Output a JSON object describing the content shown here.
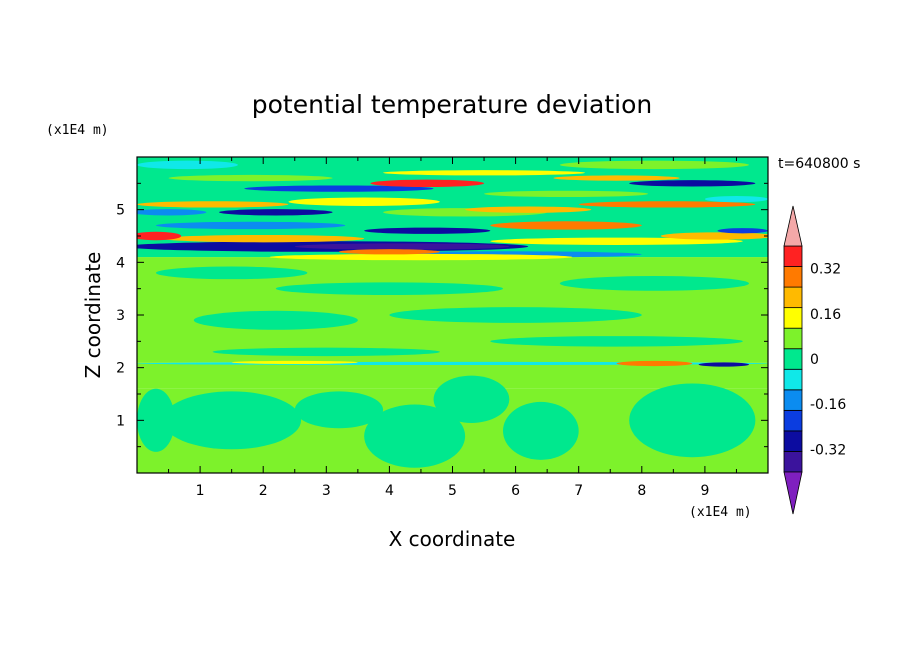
{
  "chart_data": {
    "type": "heatmap",
    "title": "potential temperature deviation",
    "xlabel": "X coordinate",
    "ylabel": "Z coordinate",
    "x_unit": "(x1E4 m)",
    "y_unit": "(x1E4 m)",
    "time_label": "t=640800 s",
    "xlim": [
      0,
      10
    ],
    "ylim": [
      0,
      6
    ],
    "x_ticks": [
      "1",
      "2",
      "3",
      "4",
      "5",
      "6",
      "7",
      "8",
      "9"
    ],
    "y_ticks": [
      "1",
      "2",
      "3",
      "4",
      "5"
    ],
    "colorbar": {
      "levels": [
        -0.48,
        -0.4,
        -0.32,
        -0.24,
        -0.16,
        -0.08,
        0,
        0.08,
        0.16,
        0.24,
        0.32,
        0.4,
        0.48
      ],
      "colors": [
        "#7f1fbf",
        "#3b139c",
        "#0c0ca0",
        "#0b3de0",
        "#0b8cf0",
        "#10e8e8",
        "#00e88e",
        "#7df22b",
        "#ffff00",
        "#ffba00",
        "#ff7a00",
        "#ff2222",
        "#f4a8a8"
      ],
      "labels": [
        "0.32",
        "0.16",
        "0",
        "-0.16",
        "-0.32"
      ],
      "label_values": [
        0.32,
        0.16,
        0,
        -0.16,
        -0.32
      ]
    },
    "bands": [
      {
        "z0": 0.0,
        "z1": 1.6,
        "x0": 0.0,
        "x1": 10.0,
        "v": 0.04
      },
      {
        "z0": 1.6,
        "z1": 2.1,
        "x0": 0.0,
        "x1": 10.0,
        "v": 0.04
      },
      {
        "z0": 2.1,
        "z1": 4.1,
        "x0": 0.0,
        "x1": 10.0,
        "v": 0.04
      },
      {
        "z0": 4.1,
        "z1": 6.0,
        "x0": 0.0,
        "x1": 10.0,
        "v": -0.04
      }
    ],
    "blobs": [
      {
        "x": 1.5,
        "z": 1.0,
        "rx": 1.1,
        "rz": 0.55,
        "v": -0.04
      },
      {
        "x": 3.2,
        "z": 1.2,
        "rx": 0.7,
        "rz": 0.35,
        "v": -0.04
      },
      {
        "x": 4.4,
        "z": 0.7,
        "rx": 0.8,
        "rz": 0.6,
        "v": -0.04
      },
      {
        "x": 5.3,
        "z": 1.4,
        "rx": 0.6,
        "rz": 0.45,
        "v": -0.04
      },
      {
        "x": 6.4,
        "z": 0.8,
        "rx": 0.6,
        "rz": 0.55,
        "v": -0.04
      },
      {
        "x": 8.8,
        "z": 1.0,
        "rx": 1.0,
        "rz": 0.7,
        "v": -0.04
      },
      {
        "x": 0.3,
        "z": 1.0,
        "rx": 0.3,
        "rz": 0.6,
        "v": -0.04
      },
      {
        "x": 2.2,
        "z": 2.9,
        "rx": 1.3,
        "rz": 0.18,
        "v": -0.04
      },
      {
        "x": 6.0,
        "z": 3.0,
        "rx": 2.0,
        "rz": 0.15,
        "v": -0.04
      },
      {
        "x": 4.0,
        "z": 3.5,
        "rx": 1.8,
        "rz": 0.12,
        "v": -0.04
      },
      {
        "x": 8.2,
        "z": 3.6,
        "rx": 1.5,
        "rz": 0.14,
        "v": -0.04
      },
      {
        "x": 1.5,
        "z": 3.8,
        "rx": 1.2,
        "rz": 0.12,
        "v": -0.04
      },
      {
        "x": 7.6,
        "z": 2.5,
        "rx": 2.0,
        "rz": 0.1,
        "v": -0.04
      },
      {
        "x": 3.0,
        "z": 2.3,
        "rx": 1.8,
        "rz": 0.08,
        "v": -0.04
      },
      {
        "x": 5.0,
        "z": 2.08,
        "rx": 5.0,
        "rz": 0.03,
        "v": -0.12
      },
      {
        "x": 2.5,
        "z": 2.1,
        "rx": 1.0,
        "rz": 0.03,
        "v": 0.12
      },
      {
        "x": 8.2,
        "z": 2.08,
        "rx": 0.6,
        "rz": 0.05,
        "v": 0.28
      },
      {
        "x": 9.3,
        "z": 2.06,
        "rx": 0.4,
        "rz": 0.04,
        "v": -0.36
      },
      {
        "x": 3.0,
        "z": 4.3,
        "rx": 3.2,
        "rz": 0.1,
        "v": -0.36
      },
      {
        "x": 4.2,
        "z": 4.3,
        "rx": 1.7,
        "rz": 0.06,
        "v": -0.44
      },
      {
        "x": 5.8,
        "z": 4.15,
        "rx": 2.2,
        "rz": 0.06,
        "v": -0.2
      },
      {
        "x": 2.0,
        "z": 4.45,
        "rx": 1.6,
        "rz": 0.07,
        "v": 0.2
      },
      {
        "x": 4.5,
        "z": 4.1,
        "rx": 2.4,
        "rz": 0.06,
        "v": 0.12
      },
      {
        "x": 0.3,
        "z": 4.5,
        "rx": 0.4,
        "rz": 0.08,
        "v": 0.36
      },
      {
        "x": 4.0,
        "z": 4.2,
        "rx": 0.8,
        "rz": 0.05,
        "v": 0.3
      },
      {
        "x": 1.8,
        "z": 4.7,
        "rx": 1.5,
        "rz": 0.07,
        "v": -0.2
      },
      {
        "x": 4.6,
        "z": 4.6,
        "rx": 1.0,
        "rz": 0.06,
        "v": -0.36
      },
      {
        "x": 7.6,
        "z": 4.4,
        "rx": 2.0,
        "rz": 0.07,
        "v": 0.12
      },
      {
        "x": 9.2,
        "z": 4.5,
        "rx": 0.9,
        "rz": 0.07,
        "v": 0.2
      },
      {
        "x": 9.6,
        "z": 4.6,
        "rx": 0.4,
        "rz": 0.05,
        "v": -0.28
      },
      {
        "x": 6.8,
        "z": 4.7,
        "rx": 1.2,
        "rz": 0.08,
        "v": 0.28
      },
      {
        "x": 1.2,
        "z": 5.1,
        "rx": 1.2,
        "rz": 0.06,
        "v": 0.2
      },
      {
        "x": 3.6,
        "z": 5.15,
        "rx": 1.2,
        "rz": 0.08,
        "v": 0.12
      },
      {
        "x": 2.2,
        "z": 4.95,
        "rx": 0.9,
        "rz": 0.06,
        "v": -0.36
      },
      {
        "x": 0.5,
        "z": 4.95,
        "rx": 0.6,
        "rz": 0.06,
        "v": -0.2
      },
      {
        "x": 5.2,
        "z": 4.95,
        "rx": 1.3,
        "rz": 0.08,
        "v": 0.04
      },
      {
        "x": 6.2,
        "z": 5.0,
        "rx": 1.0,
        "rz": 0.06,
        "v": 0.2
      },
      {
        "x": 8.4,
        "z": 5.1,
        "rx": 1.4,
        "rz": 0.06,
        "v": 0.28
      },
      {
        "x": 3.2,
        "z": 5.4,
        "rx": 1.5,
        "rz": 0.06,
        "v": -0.28
      },
      {
        "x": 4.6,
        "z": 5.5,
        "rx": 0.9,
        "rz": 0.07,
        "v": 0.36
      },
      {
        "x": 6.8,
        "z": 5.3,
        "rx": 1.3,
        "rz": 0.06,
        "v": 0.04
      },
      {
        "x": 8.8,
        "z": 5.5,
        "rx": 1.0,
        "rz": 0.06,
        "v": -0.36
      },
      {
        "x": 7.6,
        "z": 5.6,
        "rx": 1.0,
        "rz": 0.05,
        "v": 0.2
      },
      {
        "x": 1.8,
        "z": 5.6,
        "rx": 1.3,
        "rz": 0.06,
        "v": 0.04
      },
      {
        "x": 5.5,
        "z": 5.7,
        "rx": 1.6,
        "rz": 0.05,
        "v": 0.12
      },
      {
        "x": 0.8,
        "z": 5.85,
        "rx": 0.8,
        "rz": 0.08,
        "v": -0.12
      },
      {
        "x": 8.2,
        "z": 5.85,
        "rx": 1.5,
        "rz": 0.08,
        "v": 0.04
      },
      {
        "x": 9.5,
        "z": 5.2,
        "rx": 0.5,
        "rz": 0.06,
        "v": -0.12
      }
    ]
  }
}
